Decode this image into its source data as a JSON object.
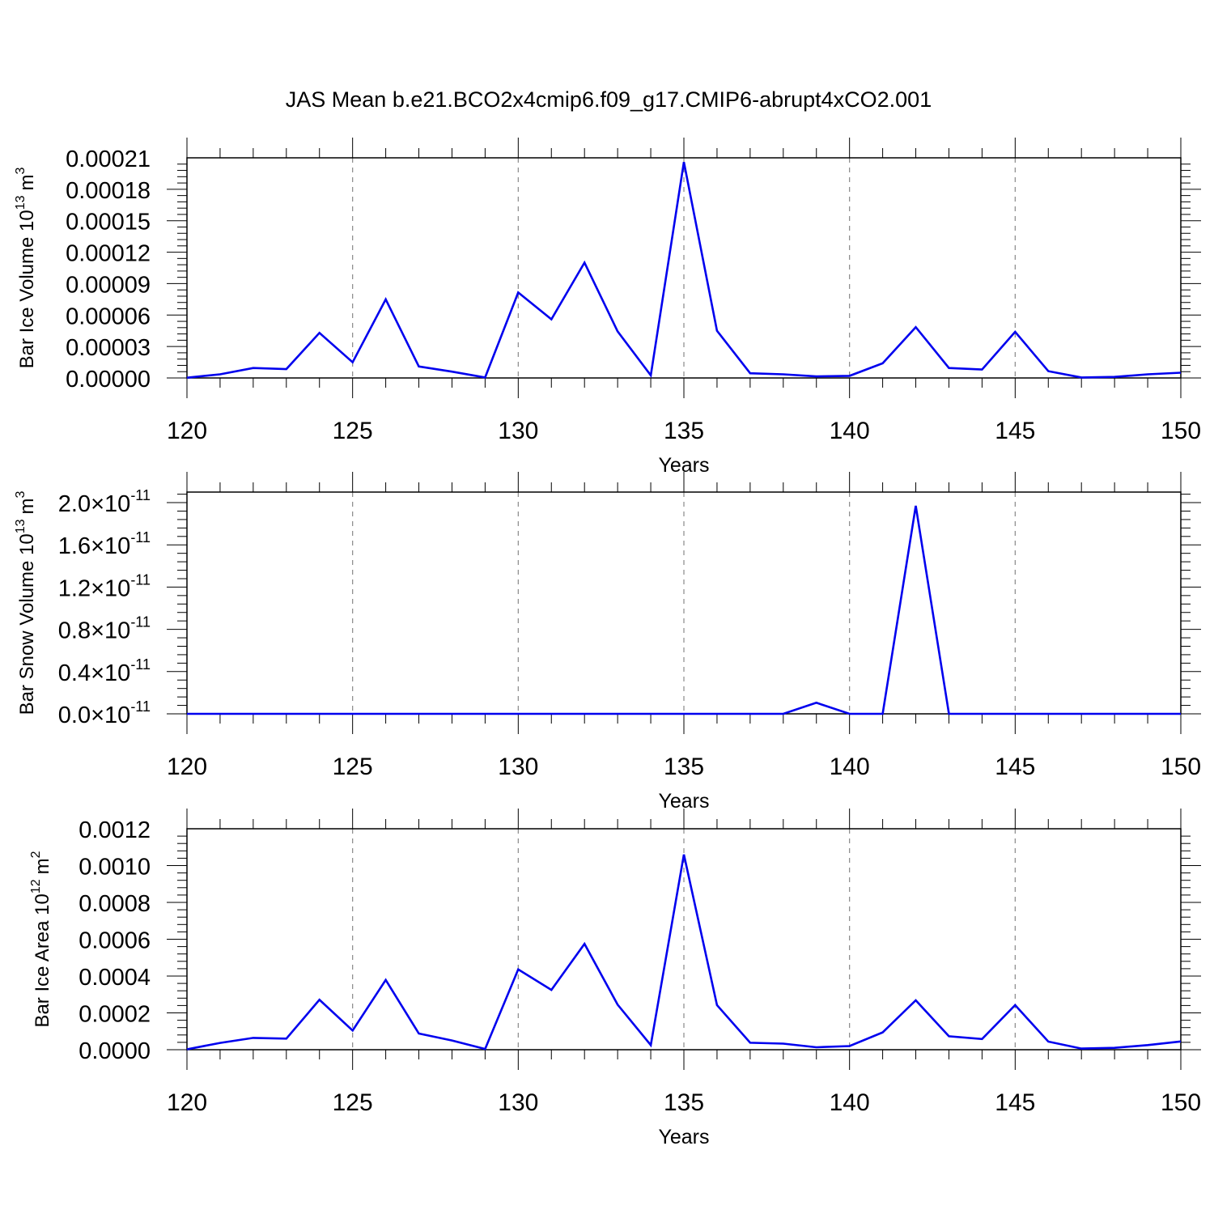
{
  "title": "JAS Mean b.e21.BCO2x4cmip6.f09_g17.CMIP6-abrupt4xCO2.001",
  "colors": {
    "line": "#0000ee",
    "axis": "#000000",
    "grid": "#888888"
  },
  "chart_data": [
    {
      "type": "line",
      "xlabel": "Years",
      "ylabel_text": "Bar Ice Volume 10",
      "ylabel_exp": "13",
      "ylabel_unit": "m",
      "ylabel_unit_exp": "3",
      "xlim": [
        120,
        150
      ],
      "ylim": [
        0,
        0.00021
      ],
      "x_ticks": [
        "120",
        "125",
        "130",
        "135",
        "140",
        "145",
        "150"
      ],
      "y_ticks": [
        {
          "value": 0,
          "label": "0.00000"
        },
        {
          "value": 3e-05,
          "label": "0.00003"
        },
        {
          "value": 6e-05,
          "label": "0.00006"
        },
        {
          "value": 9e-05,
          "label": "0.00009"
        },
        {
          "value": 0.00012,
          "label": "0.00012"
        },
        {
          "value": 0.00015,
          "label": "0.00015"
        },
        {
          "value": 0.00018,
          "label": "0.00018"
        },
        {
          "value": 0.00021,
          "label": "0.00021"
        }
      ],
      "grid_x": "dashed at major ticks",
      "x": [
        120,
        121,
        122,
        123,
        124,
        125,
        126,
        127,
        128,
        129,
        130,
        131,
        132,
        133,
        134,
        135,
        136,
        137,
        138,
        139,
        140,
        141,
        142,
        143,
        144,
        145,
        146,
        147,
        148,
        149,
        150
      ],
      "y": [
        2e-07,
        3.5e-06,
        9.5e-06,
        8.5e-06,
        4.3e-05,
        1.5e-05,
        7.5e-05,
        1.1e-05,
        6e-06,
        5e-07,
        8.15e-05,
        5.6e-05,
        0.00011,
        4.45e-05,
        2.5e-06,
        0.000206,
        4.5e-05,
        4.5e-06,
        3.5e-06,
        1.5e-06,
        2e-06,
        1.4e-05,
        4.85e-05,
        9.5e-06,
        8e-06,
        4.4e-05,
        6.5e-06,
        5e-07,
        1e-06,
        3.5e-06,
        5e-06
      ]
    },
    {
      "type": "line",
      "xlabel": "Years",
      "ylabel_text": "Bar Snow Volume 10",
      "ylabel_exp": "13",
      "ylabel_unit": "m",
      "ylabel_unit_exp": "3",
      "xlim": [
        120,
        150
      ],
      "ylim": [
        0,
        2.1e-11
      ],
      "x_ticks": [
        "120",
        "125",
        "130",
        "135",
        "140",
        "145",
        "150"
      ],
      "y_ticks": [
        {
          "value": 0,
          "mant": "0.0",
          "exp": "-11"
        },
        {
          "value": 4e-12,
          "mant": "0.4",
          "exp": "-11"
        },
        {
          "value": 8e-12,
          "mant": "0.8",
          "exp": "-11"
        },
        {
          "value": 1.2e-11,
          "mant": "1.2",
          "exp": "-11"
        },
        {
          "value": 1.6e-11,
          "mant": "1.6",
          "exp": "-11"
        },
        {
          "value": 2e-11,
          "mant": "2.0",
          "exp": "-11"
        }
      ],
      "tick_multiplier": "×10",
      "grid_x": "dashed at major ticks",
      "x": [
        120,
        121,
        122,
        123,
        124,
        125,
        126,
        127,
        128,
        129,
        130,
        131,
        132,
        133,
        134,
        135,
        136,
        137,
        138,
        139,
        140,
        141,
        142,
        143,
        144,
        145,
        146,
        147,
        148,
        149,
        150
      ],
      "y": [
        0,
        0,
        0,
        0,
        0,
        0,
        0,
        0,
        0,
        0,
        0,
        0,
        0,
        0,
        0,
        0,
        0,
        0,
        0,
        1.05e-12,
        0,
        0,
        1.97e-11,
        0,
        0,
        0,
        0,
        0,
        0,
        0,
        0
      ]
    },
    {
      "type": "line",
      "xlabel": "Years",
      "ylabel_text": "Bar Ice Area 10",
      "ylabel_exp": "12",
      "ylabel_unit": "m",
      "ylabel_unit_exp": "2",
      "xlim": [
        120,
        150
      ],
      "ylim": [
        0,
        0.0012
      ],
      "x_ticks": [
        "120",
        "125",
        "130",
        "135",
        "140",
        "145",
        "150"
      ],
      "y_ticks": [
        {
          "value": 0,
          "label": "0.0000"
        },
        {
          "value": 0.0002,
          "label": "0.0002"
        },
        {
          "value": 0.0004,
          "label": "0.0004"
        },
        {
          "value": 0.0006,
          "label": "0.0006"
        },
        {
          "value": 0.0008,
          "label": "0.0008"
        },
        {
          "value": 0.001,
          "label": "0.0010"
        },
        {
          "value": 0.0012,
          "label": "0.0012"
        }
      ],
      "grid_x": "dashed at major ticks",
      "x": [
        120,
        121,
        122,
        123,
        124,
        125,
        126,
        127,
        128,
        129,
        130,
        131,
        132,
        133,
        134,
        135,
        136,
        137,
        138,
        139,
        140,
        141,
        142,
        143,
        144,
        145,
        146,
        147,
        148,
        149,
        150
      ],
      "y": [
        2e-06,
        3.7e-05,
        6.4e-05,
        6e-05,
        0.000271,
        0.000104,
        0.000379,
        8.8e-05,
        5e-05,
        4e-06,
        0.000436,
        0.000325,
        0.000575,
        0.000245,
        2.5e-05,
        0.00106,
        0.000242,
        3.8e-05,
        3.3e-05,
        1.3e-05,
        2e-05,
        9.4e-05,
        0.000268,
        7.3e-05,
        5.8e-05,
        0.000242,
        4.4e-05,
        6e-06,
        1e-05,
        2.5e-05,
        4.5e-05
      ]
    }
  ]
}
